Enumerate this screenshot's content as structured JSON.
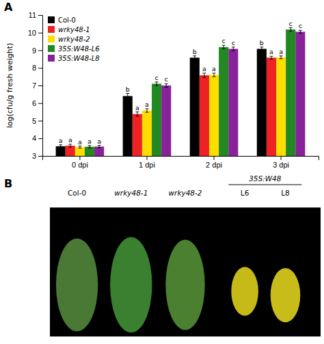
{
  "chart_data": {
    "type": "bar",
    "ylabel": "log(cfu/g fresh weight)",
    "categories": [
      "0 dpi",
      "1 dpi",
      "2 dpi",
      "3 dpi"
    ],
    "series": [
      {
        "name": "Col-0",
        "color": "#000000",
        "values": [
          3.55,
          6.4,
          8.58,
          9.08
        ],
        "errors": [
          0.08,
          0.15,
          0.1,
          0.1
        ],
        "annotations": [
          "a",
          "b",
          "b",
          "b"
        ]
      },
      {
        "name": "wrky48-1",
        "color": "#ee2222",
        "values": [
          3.58,
          5.38,
          7.58,
          8.58
        ],
        "errors": [
          0.08,
          0.12,
          0.12,
          0.08
        ],
        "annotations": [
          "a",
          "a",
          "a",
          "a"
        ]
      },
      {
        "name": "wrky48-2",
        "color": "#ffdd00",
        "values": [
          3.5,
          5.58,
          7.6,
          8.6
        ],
        "errors": [
          0.06,
          0.1,
          0.1,
          0.08
        ],
        "annotations": [
          "a",
          "a",
          "a",
          "a"
        ]
      },
      {
        "name": "35S:W48-L6",
        "color": "#228822",
        "values": [
          3.52,
          7.1,
          9.18,
          10.18
        ],
        "errors": [
          0.07,
          0.1,
          0.1,
          0.1
        ],
        "annotations": [
          "a",
          "c",
          "c",
          "c"
        ]
      },
      {
        "name": "35S:W48-L8",
        "color": "#882299",
        "values": [
          3.53,
          7.0,
          9.08,
          10.05
        ],
        "errors": [
          0.07,
          0.1,
          0.1,
          0.08
        ],
        "annotations": [
          "a",
          "c",
          "c",
          "c"
        ]
      }
    ],
    "ylim": [
      3,
      11
    ],
    "yticks": [
      3,
      4,
      5,
      6,
      7,
      8,
      9,
      10,
      11
    ],
    "legend": "upper left",
    "annotations": [
      "A",
      "B",
      "35S:W48",
      "Col-0",
      "wrky48-1",
      "wrky48-2",
      "L6",
      "L8"
    ]
  }
}
